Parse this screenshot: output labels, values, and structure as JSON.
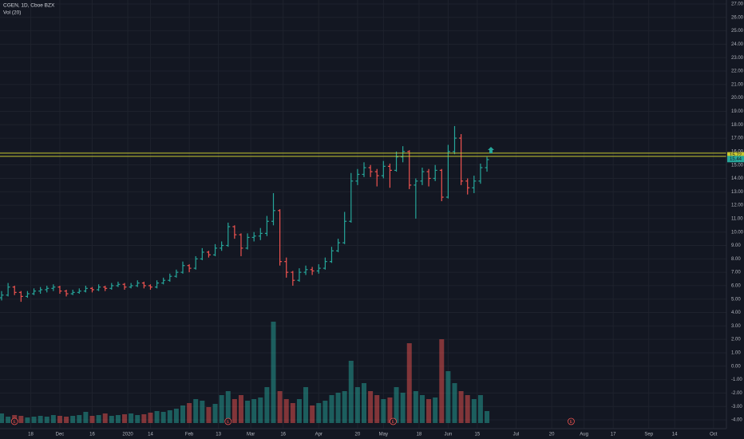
{
  "chart_data": {
    "type": "ohlc",
    "title": "CGEN, 1D, Cboe BZX",
    "subtitle": "Vol (20)",
    "ohlc": [
      [
        5.1,
        5.6,
        4.9,
        5.3
      ],
      [
        5.3,
        6.2,
        5.2,
        5.9
      ],
      [
        5.9,
        6.0,
        5.3,
        5.5
      ],
      [
        5.5,
        5.6,
        4.8,
        5.2
      ],
      [
        5.2,
        5.6,
        5.1,
        5.4
      ],
      [
        5.4,
        5.8,
        5.3,
        5.6
      ],
      [
        5.6,
        5.9,
        5.4,
        5.7
      ],
      [
        5.7,
        6.0,
        5.5,
        5.8
      ],
      [
        5.8,
        6.1,
        5.6,
        5.9
      ],
      [
        5.9,
        6.0,
        5.4,
        5.6
      ],
      [
        5.6,
        5.7,
        5.2,
        5.4
      ],
      [
        5.4,
        5.7,
        5.3,
        5.5
      ],
      [
        5.5,
        5.8,
        5.4,
        5.6
      ],
      [
        5.6,
        6.0,
        5.5,
        5.8
      ],
      [
        5.8,
        5.9,
        5.5,
        5.7
      ],
      [
        5.7,
        6.1,
        5.6,
        5.9
      ],
      [
        5.9,
        6.0,
        5.6,
        5.8
      ],
      [
        5.8,
        6.2,
        5.7,
        6.0
      ],
      [
        6.0,
        6.3,
        5.9,
        6.1
      ],
      [
        6.1,
        6.2,
        5.7,
        5.9
      ],
      [
        5.9,
        6.2,
        5.8,
        6.0
      ],
      [
        6.0,
        6.4,
        5.9,
        6.2
      ],
      [
        6.2,
        6.3,
        5.8,
        6.0
      ],
      [
        6.0,
        6.1,
        5.7,
        5.9
      ],
      [
        5.9,
        6.4,
        5.8,
        6.2
      ],
      [
        6.2,
        6.6,
        6.1,
        6.4
      ],
      [
        6.4,
        6.9,
        6.3,
        6.7
      ],
      [
        6.7,
        7.2,
        6.6,
        7.0
      ],
      [
        7.0,
        7.8,
        6.9,
        7.5
      ],
      [
        7.5,
        7.6,
        7.0,
        7.3
      ],
      [
        7.3,
        8.2,
        7.2,
        8.0
      ],
      [
        8.0,
        8.8,
        7.9,
        8.5
      ],
      [
        8.5,
        8.6,
        8.1,
        8.3
      ],
      [
        8.3,
        9.1,
        8.2,
        8.8
      ],
      [
        8.8,
        9.3,
        8.6,
        9.0
      ],
      [
        9.0,
        10.7,
        8.9,
        10.4
      ],
      [
        10.4,
        10.5,
        9.5,
        9.8
      ],
      [
        9.8,
        9.9,
        8.2,
        8.8
      ],
      [
        8.8,
        9.9,
        8.7,
        9.6
      ],
      [
        9.6,
        10.0,
        9.3,
        9.7
      ],
      [
        9.7,
        10.3,
        9.4,
        9.9
      ],
      [
        9.9,
        11.2,
        9.7,
        10.8
      ],
      [
        10.8,
        12.9,
        10.5,
        11.6
      ],
      [
        11.6,
        11.7,
        7.5,
        7.8
      ],
      [
        7.8,
        8.1,
        6.6,
        7.0
      ],
      [
        7.0,
        7.1,
        6.0,
        6.4
      ],
      [
        6.4,
        7.3,
        6.3,
        7.0
      ],
      [
        7.0,
        7.5,
        6.8,
        7.2
      ],
      [
        7.2,
        7.4,
        6.8,
        7.1
      ],
      [
        7.1,
        7.6,
        6.9,
        7.3
      ],
      [
        7.3,
        8.1,
        7.2,
        7.8
      ],
      [
        7.8,
        8.9,
        7.7,
        8.6
      ],
      [
        8.6,
        9.5,
        8.5,
        9.2
      ],
      [
        9.2,
        11.5,
        9.1,
        10.8
      ],
      [
        10.8,
        14.4,
        10.7,
        13.8
      ],
      [
        13.8,
        14.7,
        13.5,
        14.3
      ],
      [
        14.3,
        15.2,
        14.1,
        14.8
      ],
      [
        14.8,
        15.0,
        14.1,
        14.5
      ],
      [
        14.5,
        14.7,
        13.4,
        14.2
      ],
      [
        14.2,
        15.3,
        14.0,
        14.9
      ],
      [
        14.9,
        15.1,
        13.3,
        14.6
      ],
      [
        14.6,
        16.0,
        14.5,
        15.6
      ],
      [
        15.6,
        16.4,
        15.2,
        16.0
      ],
      [
        16.0,
        16.1,
        13.2,
        13.5
      ],
      [
        13.5,
        14.0,
        11.0,
        13.8
      ],
      [
        13.8,
        14.8,
        13.5,
        14.5
      ],
      [
        14.5,
        14.7,
        13.4,
        14.0
      ],
      [
        14.0,
        15.0,
        13.8,
        14.6
      ],
      [
        14.6,
        14.7,
        12.3,
        12.6
      ],
      [
        12.6,
        16.5,
        12.5,
        16.0
      ],
      [
        16.0,
        17.9,
        15.8,
        17.0
      ],
      [
        17.0,
        17.3,
        13.5,
        13.8
      ],
      [
        13.8,
        14.0,
        12.8,
        13.3
      ],
      [
        13.3,
        14.2,
        12.9,
        13.8
      ],
      [
        13.8,
        15.1,
        13.6,
        14.8
      ],
      [
        14.8,
        15.6,
        14.5,
        15.4
      ]
    ],
    "x": [
      0,
      2,
      4,
      6,
      8,
      10,
      12,
      14,
      16,
      18,
      20,
      22,
      24,
      26,
      28,
      30,
      32,
      34,
      36,
      38,
      40,
      42,
      44,
      46,
      48,
      50,
      52,
      54,
      56,
      58,
      60,
      62,
      64,
      66,
      68,
      70,
      72,
      74,
      76,
      78,
      80,
      82,
      84,
      86,
      88,
      90,
      92,
      94,
      96,
      98,
      100,
      102,
      104,
      106,
      108,
      110,
      112,
      114,
      116,
      118,
      120,
      122,
      124,
      126,
      128,
      130,
      132,
      134,
      136,
      138,
      140,
      142,
      144,
      146,
      148,
      150
    ],
    "volume": [
      12,
      8,
      10,
      9,
      7,
      8,
      9,
      8,
      10,
      9,
      8,
      9,
      10,
      14,
      9,
      10,
      12,
      9,
      10,
      11,
      12,
      10,
      11,
      13,
      15,
      14,
      16,
      18,
      22,
      25,
      30,
      28,
      20,
      24,
      35,
      40,
      30,
      35,
      28,
      30,
      32,
      45,
      127,
      40,
      30,
      25,
      30,
      45,
      22,
      25,
      28,
      35,
      38,
      40,
      78,
      45,
      50,
      40,
      35,
      30,
      32,
      45,
      38,
      100,
      40,
      35,
      30,
      32,
      105,
      65,
      50,
      40,
      35,
      30,
      35,
      15
    ],
    "vlim": [
      0,
      130
    ],
    "up_color": "#26a69a",
    "down_color": "#ef5350",
    "xlim": [
      0,
      224
    ],
    "xticks": [
      {
        "value": 9,
        "label": "18"
      },
      {
        "value": 18,
        "label": "Dec"
      },
      {
        "value": 28,
        "label": "16"
      },
      {
        "value": 39,
        "label": "2020"
      },
      {
        "value": 46,
        "label": "14"
      },
      {
        "value": 58,
        "label": "Feb"
      },
      {
        "value": 67,
        "label": "13"
      },
      {
        "value": 77,
        "label": "Mar"
      },
      {
        "value": 87,
        "label": "16"
      },
      {
        "value": 98,
        "label": "Apr"
      },
      {
        "value": 110,
        "label": "20"
      },
      {
        "value": 118,
        "label": "May"
      },
      {
        "value": 129,
        "label": "18"
      },
      {
        "value": 138,
        "label": "Jun"
      },
      {
        "value": 147,
        "label": "15"
      },
      {
        "value": 159,
        "label": "Jul"
      },
      {
        "value": 170,
        "label": "20"
      },
      {
        "value": 180,
        "label": "Aug"
      },
      {
        "value": 189,
        "label": "17"
      },
      {
        "value": 200,
        "label": "Sep"
      },
      {
        "value": 208,
        "label": "14"
      },
      {
        "value": 220,
        "label": "Oct"
      }
    ],
    "ylim": [
      -4,
      27
    ],
    "yticks": [
      {
        "value": 27,
        "label": "27.00"
      },
      {
        "value": 26,
        "label": "26.00"
      },
      {
        "value": 25,
        "label": "25.00"
      },
      {
        "value": 24,
        "label": "24.00"
      },
      {
        "value": 23,
        "label": "23.00"
      },
      {
        "value": 22,
        "label": "22.00"
      },
      {
        "value": 21,
        "label": "21.00"
      },
      {
        "value": 20,
        "label": "20.00"
      },
      {
        "value": 19,
        "label": "19.00"
      },
      {
        "value": 18,
        "label": "18.00"
      },
      {
        "value": 17,
        "label": "17.00"
      },
      {
        "value": 16,
        "label": "16.00"
      },
      {
        "value": 15,
        "label": "15.00"
      },
      {
        "value": 14,
        "label": "14.00"
      },
      {
        "value": 13,
        "label": "13.00"
      },
      {
        "value": 12,
        "label": "12.00"
      },
      {
        "value": 11,
        "label": "11.00"
      },
      {
        "value": 10,
        "label": "10.00"
      },
      {
        "value": 9,
        "label": "9.00"
      },
      {
        "value": 8,
        "label": "8.00"
      },
      {
        "value": 7,
        "label": "7.00"
      },
      {
        "value": 6,
        "label": "6.00"
      },
      {
        "value": 5,
        "label": "5.00"
      },
      {
        "value": 4,
        "label": "4.00"
      },
      {
        "value": 3,
        "label": "3.00"
      },
      {
        "value": 2,
        "label": "2.00"
      },
      {
        "value": 1,
        "label": "1.00"
      },
      {
        "value": 0,
        "label": "0.00"
      },
      {
        "value": -1,
        "label": "-1.00"
      },
      {
        "value": -2,
        "label": "-2.00"
      },
      {
        "value": -3,
        "label": "-3.00"
      },
      {
        "value": -4,
        "label": "-4.00"
      }
    ],
    "grid": true,
    "hlines": [
      15.88,
      15.64
    ],
    "hline_color": "#c8c832",
    "price_labels": [
      {
        "value": 15.72,
        "label": "15.72",
        "color": "#c8c832"
      },
      {
        "value": 15.44,
        "label": "15.44",
        "color": "#26a69a"
      }
    ],
    "events": [
      {
        "x": 4,
        "label": "E"
      },
      {
        "x": 70,
        "label": "E"
      },
      {
        "x": 121,
        "label": "E"
      },
      {
        "x": 176,
        "label": "E"
      }
    ]
  }
}
